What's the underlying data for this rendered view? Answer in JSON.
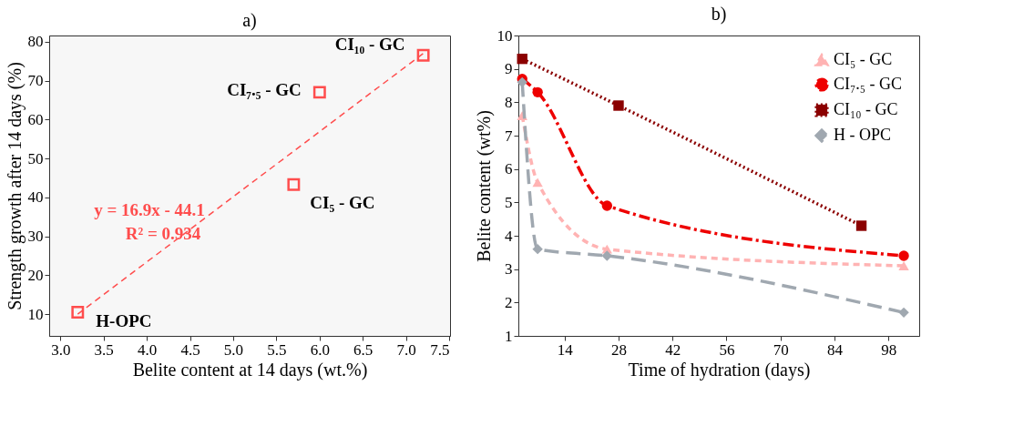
{
  "chart_data": [
    {
      "type": "scatter",
      "title": "a)",
      "xlabel": "Belite content at 14 days (wt.%)",
      "ylabel": "Strength growth after 14 days (%)",
      "xlim": [
        2.87,
        7.51
      ],
      "xticks": [
        {
          "value": 3,
          "label": "3.0"
        },
        3.5,
        {
          "value": 4,
          "label": "4.0"
        },
        4.5,
        {
          "value": 5,
          "label": "5.0"
        },
        5.5,
        {
          "value": 6,
          "label": "6.0"
        },
        6.5,
        {
          "value": 7,
          "label": "7.0"
        },
        7.5
      ],
      "ylim": [
        4.4,
        81.6
      ],
      "yticks": [
        10,
        20,
        30,
        40,
        50,
        60,
        70,
        80
      ],
      "grid": false,
      "legend": false,
      "marker": "square",
      "series": [
        {
          "type": "scatter",
          "color": "#ff4d4d",
          "x": [
            3.2,
            5.7,
            6.0,
            7.2
          ],
          "values": [
            10.5,
            43.3,
            67.0,
            76.5
          ]
        },
        {
          "type": "line",
          "color": "#ff4d4d",
          "line_style": "dashed",
          "marker": "none",
          "x": [
            3.2,
            7.2
          ],
          "values": [
            10.0,
            77.0
          ]
        }
      ],
      "annotations": [
        {
          "text": "H-OPC",
          "x": 3.2,
          "y": 10.5
        },
        {
          "text": "CI₅ - GC",
          "x": 5.7,
          "y": 43.3
        },
        {
          "text": "CI₇.₅ - GC",
          "x": 6.0,
          "y": 67.0
        },
        {
          "text": "CI₁₀ - GC",
          "x": 7.2,
          "y": 76.5
        },
        "y = 16.9x - 44.1",
        "R² = 0.934"
      ]
    },
    {
      "type": "line",
      "title": "b)",
      "xlabel": "Time of hydration (days)",
      "ylabel": "Belite content  (wt%)",
      "xlim": [
        2,
        106
      ],
      "xticks": [
        14,
        28,
        42,
        56,
        70,
        84,
        98
      ],
      "ylim": [
        1,
        10
      ],
      "yticks": [
        1,
        2,
        3,
        4,
        5,
        6,
        7,
        8,
        9,
        10
      ],
      "grid": false,
      "legend": "top right",
      "series": [
        {
          "name": "CI₅ - GC",
          "color": "#ffb3b3",
          "line_style": "dashed",
          "marker": "triangle",
          "x": [
            3,
            7,
            25,
            102
          ],
          "values": [
            7.6,
            5.6,
            3.6,
            3.1
          ]
        },
        {
          "name": "CI₇.₅ - GC",
          "color": "#ee0000",
          "line_style": "dashdot",
          "marker": "circle",
          "x": [
            3,
            7,
            25,
            102
          ],
          "values": [
            8.7,
            8.3,
            4.9,
            3.4
          ]
        },
        {
          "name": "CI₁₀ - GC",
          "color": "#8b0000",
          "line_style": "dotted",
          "marker": "square",
          "x": [
            3,
            28,
            91
          ],
          "values": [
            9.3,
            7.9,
            4.3
          ]
        },
        {
          "name": "H - OPC",
          "color": "#a0a8b0",
          "line_style": "longdashed",
          "marker": "diamond",
          "x": [
            3,
            7,
            25,
            102
          ],
          "values": [
            8.6,
            3.6,
            3.4,
            1.7
          ]
        }
      ]
    }
  ]
}
